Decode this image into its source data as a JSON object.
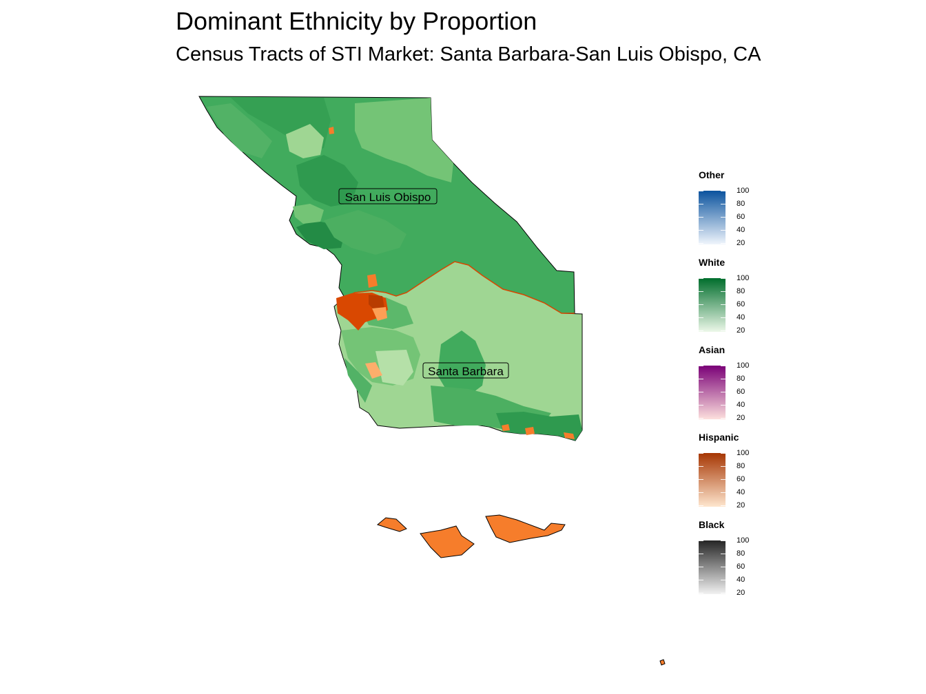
{
  "title": "Dominant Ethnicity by Proportion",
  "subtitle": "Census Tracts of STI Market: Santa Barbara-San Luis Obispo, CA",
  "map_labels": [
    {
      "id": "slo",
      "text": "San Luis Obispo"
    },
    {
      "id": "sb",
      "text": "Santa Barbara"
    }
  ],
  "legend": [
    {
      "name": "Other",
      "low": "#f0f5fc",
      "high": "#0b539e",
      "ticks": [
        "100",
        "80",
        "60",
        "40",
        "20"
      ]
    },
    {
      "name": "White",
      "low": "#edf8e9",
      "high": "#006d2c",
      "ticks": [
        "100",
        "80",
        "60",
        "40",
        "20"
      ]
    },
    {
      "name": "Asian",
      "low": "#fde0dd",
      "high": "#7a0177",
      "ticks": [
        "100",
        "80",
        "60",
        "40",
        "20"
      ]
    },
    {
      "name": "Hispanic",
      "low": "#fee6ce",
      "high": "#a63603",
      "ticks": [
        "100",
        "80",
        "60",
        "40",
        "20"
      ]
    },
    {
      "name": "Black",
      "low": "#f2f2f2",
      "high": "#252525",
      "ticks": [
        "100",
        "80",
        "60",
        "40",
        "20"
      ]
    }
  ],
  "colors": {
    "white_light": "#9fd693",
    "white_mid": "#74c476",
    "white_base": "#41ab5d",
    "white_dark": "#238b45",
    "hispanic_mid": "#f67d2b",
    "hispanic_light": "#fdae6b",
    "hispanic_dark": "#d94801"
  }
}
